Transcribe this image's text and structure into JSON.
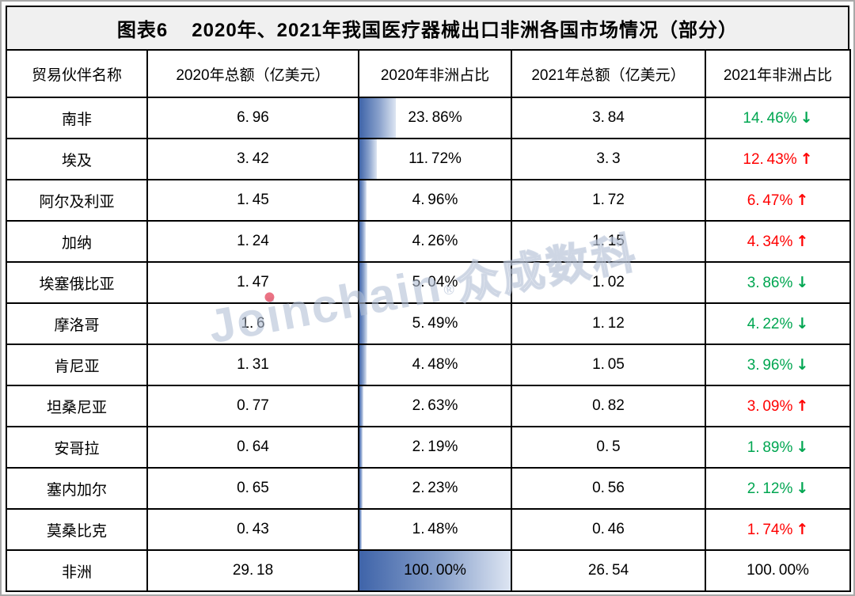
{
  "title": {
    "prefix": "图表6",
    "main": "2020年、2021年我国医疗器械出口非洲各国市场情况（部分）"
  },
  "watermark": {
    "latin": "Joinchain",
    "reg": "®",
    "cn": "众成数科"
  },
  "icons": {
    "up": "↑",
    "down": "↓",
    "none": ""
  },
  "colors": {
    "increase_red": "#ff0000",
    "decrease_green": "#00a651",
    "bar_dark": "#3f64a9",
    "bar_light": "#dde5f2",
    "title_bg": "#f0f0f0",
    "border": "#000000"
  },
  "chart_data": {
    "type": "table",
    "title": "图表6 2020年、2021年我国医疗器械出口非洲各国市场情况（部分）",
    "columns": [
      "贸易伙伴名称",
      "2020年总额（亿美元）",
      "2020年非洲占比",
      "2021年总额（亿美元）",
      "2021年非洲占比"
    ],
    "bar_column": "2020年非洲占比",
    "rows": [
      {
        "name": "南非",
        "total_2020": "6.96",
        "share_2020": "23.86%",
        "total_2021": "3.84",
        "share_2021": "14.46%",
        "trend": "down"
      },
      {
        "name": "埃及",
        "total_2020": "3.42",
        "share_2020": "11.72%",
        "total_2021": "3.3",
        "share_2021": "12.43%",
        "trend": "up"
      },
      {
        "name": "阿尔及利亚",
        "total_2020": "1.45",
        "share_2020": "4.96%",
        "total_2021": "1.72",
        "share_2021": "6.47%",
        "trend": "up"
      },
      {
        "name": "加纳",
        "total_2020": "1.24",
        "share_2020": "4.26%",
        "total_2021": "1.15",
        "share_2021": "4.34%",
        "trend": "up"
      },
      {
        "name": "埃塞俄比亚",
        "total_2020": "1.47",
        "share_2020": "5.04%",
        "total_2021": "1.02",
        "share_2021": "3.86%",
        "trend": "down"
      },
      {
        "name": "摩洛哥",
        "total_2020": "1.6",
        "share_2020": "5.49%",
        "total_2021": "1.12",
        "share_2021": "4.22%",
        "trend": "down"
      },
      {
        "name": "肯尼亚",
        "total_2020": "1.31",
        "share_2020": "4.48%",
        "total_2021": "1.05",
        "share_2021": "3.96%",
        "trend": "down"
      },
      {
        "name": "坦桑尼亚",
        "total_2020": "0.77",
        "share_2020": "2.63%",
        "total_2021": "0.82",
        "share_2021": "3.09%",
        "trend": "up"
      },
      {
        "name": "安哥拉",
        "total_2020": "0.64",
        "share_2020": "2.19%",
        "total_2021": "0.5",
        "share_2021": "1.89%",
        "trend": "down"
      },
      {
        "name": "塞内加尔",
        "total_2020": "0.65",
        "share_2020": "2.23%",
        "total_2021": "0.56",
        "share_2021": "2.12%",
        "trend": "down"
      },
      {
        "name": "莫桑比克",
        "total_2020": "0.43",
        "share_2020": "1.48%",
        "total_2021": "0.46",
        "share_2021": "1.74%",
        "trend": "up"
      },
      {
        "name": "非洲",
        "total_2020": "29.18",
        "share_2020": "100.00%",
        "total_2021": "26.54",
        "share_2021": "100.00%",
        "trend": "none"
      }
    ]
  }
}
